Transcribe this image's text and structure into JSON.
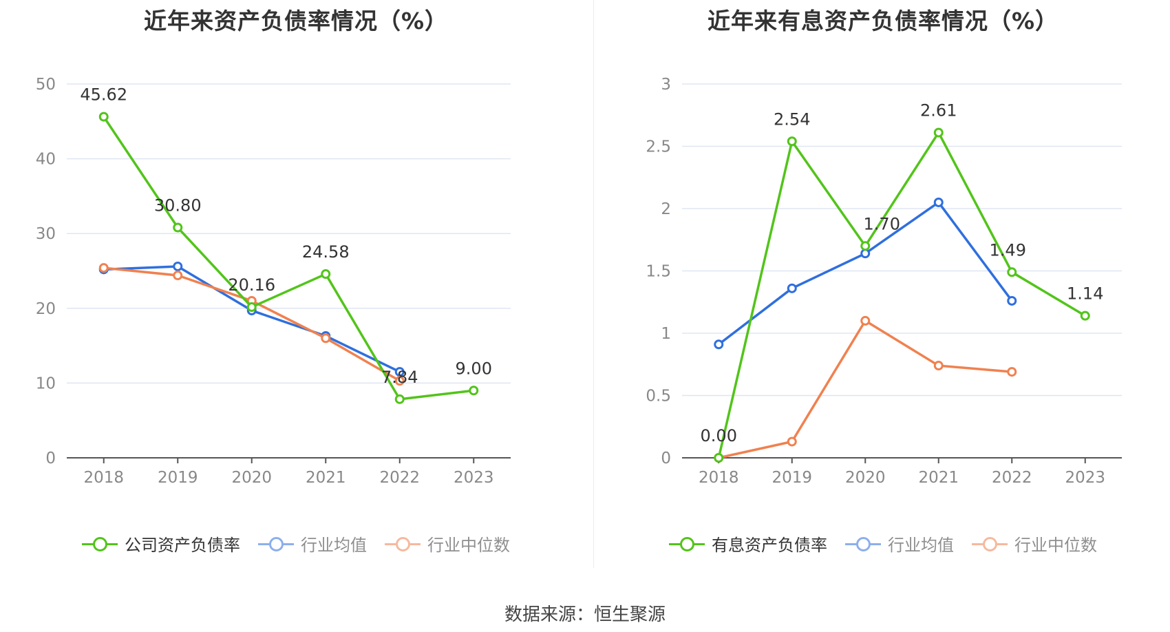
{
  "source_label": "数据来源：恒生聚源",
  "chart_data": [
    {
      "type": "line",
      "title": "近年来资产负债率情况（%）",
      "categories": [
        "2018",
        "2019",
        "2020",
        "2021",
        "2022",
        "2023"
      ],
      "ylim": [
        0,
        50
      ],
      "yticks": [
        "0",
        "10",
        "20",
        "30",
        "40",
        "50"
      ],
      "grid": true,
      "legend_position": "bottom",
      "series": [
        {
          "name": "公司资产负债率",
          "color": "#52c41a",
          "values": [
            45.62,
            30.8,
            20.16,
            24.58,
            7.84,
            9.0
          ],
          "labels": [
            "45.62",
            "30.80",
            "20.16",
            "24.58",
            "7.84",
            "9.00"
          ]
        },
        {
          "name": "行业均值",
          "color": "#2f6fde",
          "values": [
            25.2,
            25.6,
            19.7,
            16.3,
            11.5,
            null
          ]
        },
        {
          "name": "行业中位数",
          "color": "#f0814f",
          "values": [
            25.4,
            24.4,
            21.0,
            16.0,
            10.3,
            null
          ]
        }
      ]
    },
    {
      "type": "line",
      "title": "近年来有息资产负债率情况（%）",
      "categories": [
        "2018",
        "2019",
        "2020",
        "2021",
        "2022",
        "2023"
      ],
      "ylim": [
        0,
        3
      ],
      "yticks": [
        "0",
        "0.5",
        "1",
        "1.5",
        "2",
        "2.5",
        "3"
      ],
      "grid": true,
      "legend_position": "bottom",
      "series": [
        {
          "name": "有息资产负债率",
          "color": "#52c41a",
          "values": [
            0.0,
            2.54,
            1.7,
            2.61,
            1.49,
            1.14
          ],
          "labels": [
            "0.00",
            "2.54",
            "1.70",
            "2.61",
            "1.49",
            "1.14"
          ]
        },
        {
          "name": "行业均值",
          "color": "#2f6fde",
          "values": [
            0.91,
            1.36,
            1.64,
            2.05,
            1.26,
            null
          ]
        },
        {
          "name": "行业中位数",
          "color": "#f0814f",
          "values": [
            0.0,
            0.13,
            1.1,
            0.74,
            0.69,
            null
          ]
        }
      ]
    }
  ]
}
